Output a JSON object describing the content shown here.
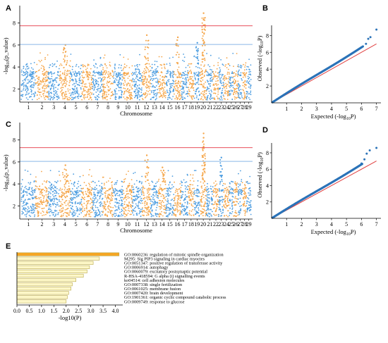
{
  "panels": {
    "A": {
      "letter": "A"
    },
    "B": {
      "letter": "B"
    },
    "C": {
      "letter": "C"
    },
    "D": {
      "letter": "D"
    },
    "E": {
      "letter": "E"
    }
  },
  "colors": {
    "blue": "#4d9de0",
    "orange": "#f5a64a",
    "red_line": "#e8505b",
    "blue_line": "#8ab8e6",
    "qq_point": "#2b73b8",
    "qq_line": "#e04040",
    "bar_fill": "#fdf7c8",
    "bar_top": "#f5a623",
    "bar_stroke": "#b9a84a"
  },
  "chart_data": [
    {
      "type": "scatter",
      "panel": "A",
      "subtype": "manhattan",
      "ylabel": "-log10(p_value)",
      "xlabel": "Chromosome",
      "categories": [
        "1",
        "2",
        "3",
        "4",
        "5",
        "6",
        "7",
        "8",
        "9",
        "10",
        "11",
        "12",
        "13",
        "14",
        "15",
        "16",
        "17",
        "18",
        "19",
        "20",
        "21",
        "22",
        "23",
        "24",
        "25",
        "26",
        "27",
        "28",
        "29"
      ],
      "yticks": [
        2,
        4,
        6,
        8
      ],
      "ylim": [
        0.8,
        9.2
      ],
      "thresholds": [
        7.75,
        6.05
      ],
      "peaks": [
        {
          "chrom": "20",
          "value": 8.9
        },
        {
          "chrom": "20",
          "value": 8.3
        },
        {
          "chrom": "20",
          "value": 7.8
        },
        {
          "chrom": "12",
          "value": 6.9
        },
        {
          "chrom": "4",
          "value": 6.0
        },
        {
          "chrom": "16",
          "value": 6.7
        },
        {
          "chrom": "19",
          "value": 6.2
        }
      ]
    },
    {
      "type": "scatter",
      "panel": "B",
      "subtype": "qq",
      "xlabel": "Expected (-log10P)",
      "ylabel": "Observed (-log10P)",
      "xticks": [
        1,
        2,
        3,
        4,
        5,
        6,
        7
      ],
      "yticks": [
        2,
        4,
        6,
        8
      ],
      "xlim": [
        0,
        7.3
      ],
      "ylim": [
        0,
        9.2
      ],
      "tail": [
        [
          6.1,
          6.7
        ],
        [
          6.3,
          7.0
        ],
        [
          6.45,
          7.6
        ],
        [
          6.6,
          7.8
        ],
        [
          7.0,
          8.7
        ]
      ]
    },
    {
      "type": "scatter",
      "panel": "C",
      "subtype": "manhattan",
      "ylabel": "-log10(p_value)",
      "xlabel": "Chromosome",
      "categories": [
        "1",
        "2",
        "3",
        "4",
        "5",
        "6",
        "7",
        "8",
        "9",
        "10",
        "11",
        "12",
        "13",
        "14",
        "15",
        "16",
        "17",
        "18",
        "19",
        "20",
        "21",
        "22",
        "23",
        "24",
        "25",
        "26",
        "27",
        "28",
        "29"
      ],
      "yticks": [
        2,
        4,
        6,
        8
      ],
      "ylim": [
        0.8,
        9.2
      ],
      "thresholds": [
        7.3,
        6.05
      ],
      "peaks": [
        {
          "chrom": "20",
          "value": 8.6
        },
        {
          "chrom": "20",
          "value": 8.2
        },
        {
          "chrom": "20",
          "value": 7.4
        },
        {
          "chrom": "12",
          "value": 6.6
        },
        {
          "chrom": "23",
          "value": 6.4
        },
        {
          "chrom": "4",
          "value": 5.7
        },
        {
          "chrom": "14",
          "value": 5.5
        }
      ]
    },
    {
      "type": "scatter",
      "panel": "D",
      "subtype": "qq",
      "xlabel": "Expected (-log10P)",
      "ylabel": "Observed (-log10P)",
      "xticks": [
        1,
        2,
        3,
        4,
        5,
        6,
        7
      ],
      "yticks": [
        2,
        4,
        6,
        8
      ],
      "xlim": [
        0,
        7.3
      ],
      "ylim": [
        0,
        9.2
      ],
      "tail": [
        [
          6.0,
          6.7
        ],
        [
          6.2,
          7.2
        ],
        [
          6.35,
          7.9
        ],
        [
          6.55,
          8.3
        ],
        [
          7.0,
          8.6
        ]
      ]
    },
    {
      "type": "bar",
      "panel": "E",
      "orientation": "horizontal",
      "xlabel": "-log10(P)",
      "xticks": [
        "0.0",
        "0.5",
        "1.0",
        "1.5",
        "2.0",
        "2.5",
        "3.0",
        "3.5",
        "4.0"
      ],
      "xlim": [
        0,
        4.3
      ],
      "categories": [
        "GO:0060236: regulation of mitotic spindle organization",
        "M295: Sig PIP3 signaling in cardiac myoctes",
        "GO:0051347: positive regulation of transferase activity",
        "GO:0006914: autophagy",
        "GO:0060079: excitatory postsynaptic potential",
        "R-HSA-418594: G alpha (i) signalling events",
        "ko04514: cell adhesion molecules",
        "GO:0007338: single fertilization",
        "GO:0061025: membrane fusion",
        "GO:0007420: brain development",
        "GO:1901361: organic cyclic compound catabolic process",
        "GO:0009749: response to glucose"
      ],
      "values": [
        4.15,
        3.35,
        3.1,
        2.95,
        2.85,
        2.7,
        2.4,
        2.25,
        2.2,
        2.1,
        2.05,
        2.0
      ]
    }
  ]
}
